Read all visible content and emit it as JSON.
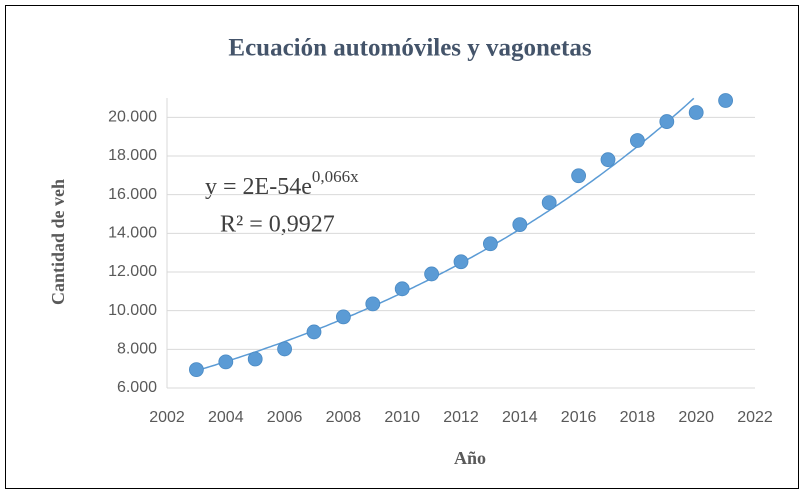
{
  "chart_data": {
    "type": "scatter",
    "title": "Ecuación automóviles y vagonetas",
    "x_label": "Año",
    "y_label": "Cantidad de veh",
    "equation": "y = 2E-54e",
    "equation_exponent": "0,066x",
    "r_squared": "R² = 0,9927",
    "color": "#5b9bd5",
    "grid": true,
    "trendline": "exponential",
    "x": [
      2003,
      2004,
      2005,
      2006,
      2007,
      2008,
      2009,
      2010,
      2011,
      2012,
      2013,
      2014,
      2015,
      2016,
      2017,
      2018,
      2019,
      2020,
      2021
    ],
    "values": [
      6950,
      7350,
      7500,
      8020,
      8900,
      9680,
      10350,
      11130,
      11900,
      12530,
      13460,
      14450,
      15590,
      16980,
      17810,
      18800,
      19780,
      20250,
      20870
    ],
    "xlim": [
      2002,
      2022
    ],
    "xticks": [
      2002,
      2004,
      2006,
      2008,
      2010,
      2012,
      2014,
      2016,
      2018,
      2020,
      2022
    ],
    "ylim": [
      6000,
      21000
    ],
    "yticks": [
      {
        "value": 6000,
        "label": "6.000"
      },
      {
        "value": 8000,
        "label": "8.000"
      },
      {
        "value": 10000,
        "label": "10.000"
      },
      {
        "value": 12000,
        "label": "12.000"
      },
      {
        "value": 14000,
        "label": "14.000"
      },
      {
        "value": 16000,
        "label": "16.000"
      },
      {
        "value": 18000,
        "label": "18.000"
      },
      {
        "value": 20000,
        "label": "20.000"
      }
    ]
  }
}
